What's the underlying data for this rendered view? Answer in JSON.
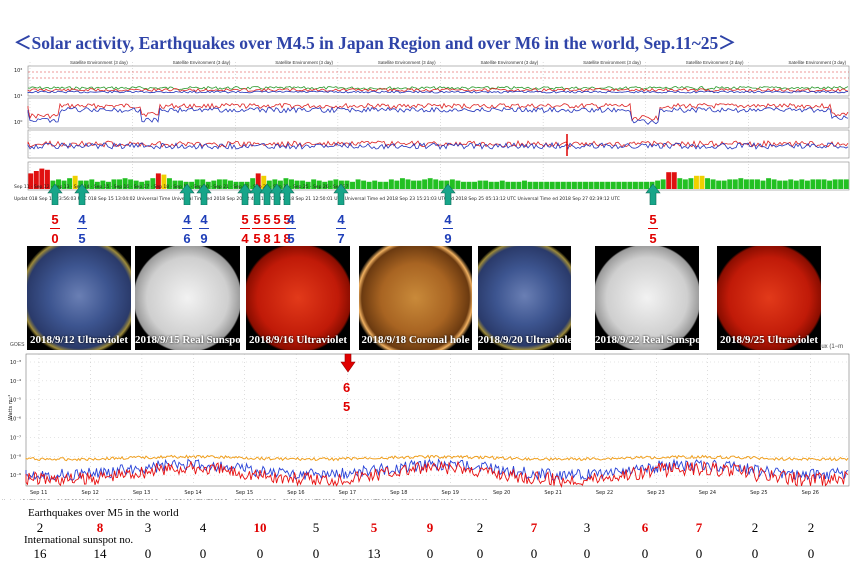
{
  "title": "＜Solar activity, Earthquakes over M4.5 in Japan Region and over M6 in the world, Sep.11~25＞",
  "colors": {
    "title": "#2f44a8",
    "red": "#e00000",
    "blue": "#1f3fb8",
    "green_arrow": "#17a589",
    "red_arrow": "#e00000"
  },
  "upper_plot": {
    "kp_bars": [
      2.6,
      3,
      3.4,
      3.2,
      1.4,
      1.6,
      1.4,
      1.8,
      2.2,
      1.4,
      1.4,
      1.6,
      1.2,
      1.4,
      1.2,
      1.6,
      1.6,
      1.8,
      1.6,
      1.4,
      1.2,
      1.4,
      1.8,
      2.6,
      2.4,
      1.8,
      1.4,
      1.4,
      1.2,
      1.2,
      1.6,
      1.6,
      1.2,
      1.4,
      1.6,
      1.6,
      1.4,
      1.2,
      1.2,
      1.2,
      1.8,
      2.6,
      2.2,
      1.4,
      1.6,
      1.4,
      1.8,
      1.6,
      1.4,
      1.4,
      1.2,
      1.6,
      1.4,
      1.2,
      1.4,
      1.6,
      1.4,
      1.4,
      1.2,
      1.6,
      1.4,
      1.2,
      1.4,
      1.2,
      1.2,
      1.6,
      1.4,
      1.8,
      1.6,
      1.4,
      1.4,
      1.6,
      1.8,
      1.6,
      1.4,
      1.4,
      1.6,
      1.4,
      1.2,
      1.2,
      1.2,
      1.4,
      1.4,
      1.2,
      1.2,
      1.4,
      1.2,
      1.2,
      1.2,
      1.4,
      1.2,
      1.2,
      1.2,
      1.2,
      1.2,
      1.2,
      1.2,
      1.2,
      1.2,
      1.2,
      1.2,
      1.2,
      1.2,
      1.2,
      1.2,
      1.2,
      1.2,
      1.2,
      1.2,
      1.2,
      1.2,
      1.2,
      1.2,
      1.4,
      1.6,
      2.8,
      2.8,
      1.8,
      1.6,
      1.8,
      2.2,
      2.2,
      1.8,
      1.6,
      1.4,
      1.4,
      1.6,
      1.6,
      1.8,
      1.6,
      1.6,
      1.6,
      1.4,
      1.8,
      1.6,
      1.4,
      1.4,
      1.6,
      1.4,
      1.6,
      1.4,
      1.6,
      1.6,
      1.6,
      1.4,
      1.6,
      1.6,
      1.6
    ],
    "kp_colors_key": "green/yellow/red by level",
    "header_labels": [
      "Satellite Environment (3 day)",
      "Satellite Environment (3 day)",
      "Satellite Environment (3 day)",
      "Satellite Environment (3 day)",
      "Satellite Environment (3 day)",
      "Satellite Environment (3 day)",
      "Satellite Environment (3 day)",
      "Satellite Environment (3 day)"
    ],
    "y_ticks": [
      "10²",
      "10¹",
      "10⁰"
    ],
    "date_row": "Sep 11 · Sep 12 · Sep 13 · Sep 14 · Sep 15 · Sep 16 · Sep 17 · Sep 18 · Sep 19 · Sep 20 · Sep 21 · Sep 22 · Sep 23 · Sep 24 · Sep 25 · Sep 26 · Sep 27",
    "update_row": "Updat   018 Sep 14 23:56:03 UTC   018 Sep 15 13:04:02   Universal Time   Universal Time   ed 2018 Sep 20 12:40:11 UTC   ed 2018 Sep 21 12:50:01 UTC   Universal Time   ed 2018 Sep 23 15:21:03 UTC   ed 2018 Sep 25 05:13:12 UTC   Universal Time   ed 2018 Sep 27 02:39:12 UTC"
  },
  "japan_quakes": [
    {
      "top": "5",
      "bottom": "0",
      "top_color": "#e00000",
      "bottom_color": "#e00000"
    },
    {
      "top": "4",
      "bottom": "5",
      "top_color": "#1f3fb8",
      "bottom_color": "#1f3fb8"
    },
    {
      "top": "4",
      "bottom": "6",
      "top_color": "#1f3fb8",
      "bottom_color": "#1f3fb8"
    },
    {
      "top": "4",
      "bottom": "9",
      "top_color": "#1f3fb8",
      "bottom_color": "#1f3fb8"
    },
    {
      "top": "5",
      "bottom": "4",
      "top_color": "#e00000",
      "bottom_color": "#e00000"
    },
    {
      "top": "5",
      "bottom": "5",
      "top_color": "#e00000",
      "bottom_color": "#e00000"
    },
    {
      "top": "5",
      "bottom": "8",
      "top_color": "#e00000",
      "bottom_color": "#e00000"
    },
    {
      "top": "5",
      "bottom": "1",
      "top_color": "#e00000",
      "bottom_color": "#e00000"
    },
    {
      "top": "5",
      "bottom": "8",
      "top_color": "#e00000",
      "bottom_color": "#e00000"
    },
    {
      "top": "4",
      "bottom": "5",
      "top_color": "#1f3fb8",
      "bottom_color": "#1f3fb8"
    },
    {
      "top": "4",
      "bottom": "7",
      "top_color": "#1f3fb8",
      "bottom_color": "#1f3fb8"
    },
    {
      "top": "4",
      "bottom": "9",
      "top_color": "#1f3fb8",
      "bottom_color": "#1f3fb8"
    },
    {
      "top": "5",
      "bottom": "5",
      "top_color": "#e00000",
      "bottom_color": "#e00000"
    }
  ],
  "world_quake": {
    "top": "6",
    "bottom": "5"
  },
  "images": [
    {
      "caption": "2018/9/12 Ultraviolet",
      "kind": "uv-blue"
    },
    {
      "caption": "2018/9/15 Real Sunspot",
      "kind": "white"
    },
    {
      "caption": "2018/9/16 Ultraviolet",
      "kind": "red"
    },
    {
      "caption": "2018/9/18 Coronal hole",
      "kind": "orange"
    },
    {
      "caption": "2018/9/20 Ultraviolet",
      "kind": "uv-blue"
    },
    {
      "caption": "2018/9/22 Real Sunspot",
      "kind": "white"
    },
    {
      "caption": "2018/9/25 Ultraviolet",
      "kind": "red"
    }
  ],
  "lower_plot": {
    "ylabel": "Watts m⁻²",
    "y_ticks": [
      "10⁻³",
      "10⁻⁴",
      "10⁻⁵",
      "10⁻⁶",
      "10⁻⁷",
      "10⁻⁸",
      "10⁻⁹"
    ],
    "x_ticks": [
      "Sep 11",
      "Sep 12",
      "Sep 13",
      "Sep 14",
      "Sep 15",
      "Sep 16",
      "Sep 17",
      "Sep 18",
      "Sep 19",
      "Sep 20",
      "Sep 21",
      "Sep 22",
      "Sep 23",
      "Sep 24",
      "Sep 25",
      "Sep 26"
    ],
    "header_left": "GOES",
    "header_right": "lux (1−m",
    "footer": "Updated 2 UTC   018 Sep 14 23:36:12 018 Sep 15 13:28:11 UTC   018 Sep 17 07:24:11 UTC   UTC   018 Sep 20 07:25:12 018 Sep 21 12:40:11 UTC   018 Sep 23 15:33:11 UTC   018 Sep 25 05:13:12 UTC   018 Sep 27 02:39:12"
  },
  "chart_data": {
    "type": "table",
    "title": "Earthquakes over M5 in the world / International sunspot no.",
    "row_label_quakes": "Earthquakes over M5 in the world",
    "row_label_sunspots": "International sunspot no.",
    "quakes": [
      {
        "v": "2",
        "c": "#000000"
      },
      {
        "v": "8",
        "c": "#e00000"
      },
      {
        "v": "3",
        "c": "#000000"
      },
      {
        "v": "4",
        "c": "#000000"
      },
      {
        "v": "10",
        "c": "#e00000"
      },
      {
        "v": "5",
        "c": "#000000"
      },
      {
        "v": "5",
        "c": "#e00000"
      },
      {
        "v": "9",
        "c": "#e00000"
      },
      {
        "v": "2",
        "c": "#000000"
      },
      {
        "v": "7",
        "c": "#e00000"
      },
      {
        "v": "3",
        "c": "#000000"
      },
      {
        "v": "6",
        "c": "#e00000"
      },
      {
        "v": "7",
        "c": "#e00000"
      },
      {
        "v": "2",
        "c": "#000000"
      },
      {
        "v": "2",
        "c": "#000000"
      }
    ],
    "sunspots": [
      "16",
      "14",
      "0",
      "0",
      "0",
      "0",
      "13",
      "0",
      "0",
      "0",
      "0",
      "0",
      "0",
      "0",
      "0"
    ]
  }
}
